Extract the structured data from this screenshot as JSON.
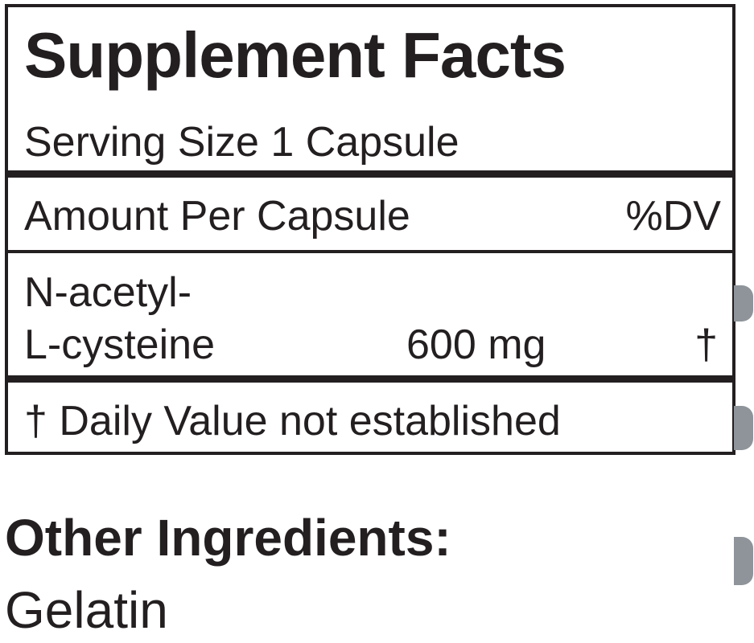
{
  "title": "Supplement Facts",
  "serving_size": "Serving Size 1 Capsule",
  "amount_header": "Amount Per Capsule",
  "dv_header": "%DV",
  "ingredient": {
    "name_line1": "N-acetyl-",
    "name_line2": "L-cysteine",
    "amount": "600 mg",
    "dv": "†"
  },
  "footnote": "† Daily Value not established",
  "other_ingredients": {
    "heading": "Other Ingredients:",
    "value": "Gelatin"
  }
}
